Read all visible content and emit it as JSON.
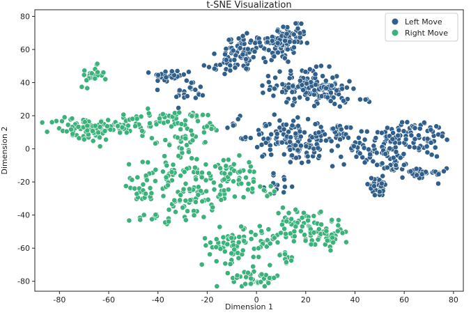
{
  "chart_data": {
    "type": "scatter",
    "title": "t-SNE Visualization",
    "xlabel": "Dimension 1",
    "ylabel": "Dimension 2",
    "xlim": [
      -90,
      84
    ],
    "ylim": [
      -86,
      84
    ],
    "xticks": [
      -80,
      -60,
      -40,
      -20,
      0,
      20,
      40,
      60,
      80
    ],
    "yticks": [
      -80,
      -60,
      -40,
      -20,
      0,
      20,
      40,
      60,
      80
    ],
    "grid": false,
    "legend_position": "top-right",
    "series": [
      {
        "name": "Left Move",
        "color": "#2f5f8a",
        "edge_color": "#ffffff",
        "clusters": [
          {
            "cx": -5,
            "cy": 58,
            "sx": 4,
            "sy": 6,
            "n": 55
          },
          {
            "cx": -14,
            "cy": 52,
            "sx": 4,
            "sy": 4,
            "n": 20
          },
          {
            "cx": 9,
            "cy": 63,
            "sx": 5,
            "sy": 6,
            "n": 70
          },
          {
            "cx": 15,
            "cy": 70,
            "sx": 3,
            "sy": 4,
            "n": 25
          },
          {
            "cx": -34,
            "cy": 44,
            "sx": 4,
            "sy": 2,
            "n": 30
          },
          {
            "cx": -27,
            "cy": 34,
            "sx": 3,
            "sy": 4,
            "n": 20
          },
          {
            "cx": 20,
            "cy": 38,
            "sx": 7,
            "sy": 5,
            "n": 120
          },
          {
            "cx": 30,
            "cy": 33,
            "sx": 4,
            "sy": 4,
            "n": 30
          },
          {
            "cx": 43,
            "cy": 29,
            "sx": 1.5,
            "sy": 0.7,
            "n": 5
          },
          {
            "cx": -8,
            "cy": 15,
            "sx": 2,
            "sy": 3,
            "n": 8
          },
          {
            "cx": 8,
            "cy": 8,
            "sx": 6,
            "sy": 5,
            "n": 60
          },
          {
            "cx": 20,
            "cy": 0,
            "sx": 6,
            "sy": 5,
            "n": 60
          },
          {
            "cx": 33,
            "cy": 10,
            "sx": 5,
            "sy": 3,
            "n": 40
          },
          {
            "cx": 48,
            "cy": 0,
            "sx": 6,
            "sy": 5,
            "n": 60
          },
          {
            "cx": 61,
            "cy": 10,
            "sx": 5,
            "sy": 4,
            "n": 40
          },
          {
            "cx": 70,
            "cy": 5,
            "sx": 3,
            "sy": 5,
            "n": 30
          },
          {
            "cx": 67,
            "cy": -15,
            "sx": 5,
            "sy": 2,
            "n": 30
          },
          {
            "cx": 49,
            "cy": -23,
            "sx": 3,
            "sy": 3,
            "n": 30
          },
          {
            "cx": 55,
            "cy": -10,
            "sx": 4,
            "sy": 4,
            "n": 25
          },
          {
            "cx": 10,
            "cy": -22,
            "sx": 3,
            "sy": 3,
            "n": 14
          }
        ]
      },
      {
        "name": "Right Move",
        "color": "#3bb27a",
        "edge_color": "#ffffff",
        "clusters": [
          {
            "cx": -67,
            "cy": 44,
            "sx": 2.5,
            "sy": 3,
            "n": 22
          },
          {
            "cx": -70,
            "cy": 12,
            "sx": 7,
            "sy": 4,
            "n": 70
          },
          {
            "cx": -54,
            "cy": 14,
            "sx": 6,
            "sy": 3,
            "n": 45
          },
          {
            "cx": -38,
            "cy": 18,
            "sx": 7,
            "sy": 2,
            "n": 25
          },
          {
            "cx": -25,
            "cy": 21,
            "sx": 5,
            "sy": 1,
            "n": 12
          },
          {
            "cx": -30,
            "cy": 5,
            "sx": 4,
            "sy": 6,
            "n": 40
          },
          {
            "cx": -40,
            "cy": -15,
            "sx": 5,
            "sy": 5,
            "n": 25
          },
          {
            "cx": -47,
            "cy": -27,
            "sx": 3,
            "sy": 4,
            "n": 18
          },
          {
            "cx": -28,
            "cy": -25,
            "sx": 6,
            "sy": 10,
            "n": 60
          },
          {
            "cx": -41,
            "cy": -43,
            "sx": 4,
            "sy": 2,
            "n": 14
          },
          {
            "cx": -15,
            "cy": -20,
            "sx": 5,
            "sy": 8,
            "n": 40
          },
          {
            "cx": -5,
            "cy": -15,
            "sx": 4,
            "sy": 7,
            "n": 30
          },
          {
            "cx": -12,
            "cy": -58,
            "sx": 5,
            "sy": 5,
            "n": 50
          },
          {
            "cx": 2,
            "cy": -55,
            "sx": 4,
            "sy": 5,
            "n": 30
          },
          {
            "cx": 0,
            "cy": -78,
            "sx": 5,
            "sy": 3,
            "n": 40
          },
          {
            "cx": 16,
            "cy": -44,
            "sx": 5,
            "sy": 4,
            "n": 35
          },
          {
            "cx": 25,
            "cy": -50,
            "sx": 5,
            "sy": 5,
            "n": 40
          },
          {
            "cx": 30,
            "cy": -53,
            "sx": 3,
            "sy": 4,
            "n": 20
          },
          {
            "cx": 12,
            "cy": -65,
            "sx": 2,
            "sy": 2,
            "n": 10
          },
          {
            "cx": 5,
            "cy": -25,
            "sx": 1.5,
            "sy": 1.5,
            "n": 6
          },
          {
            "cx": -20,
            "cy": 12,
            "sx": 3,
            "sy": 3,
            "n": 12
          }
        ]
      }
    ]
  }
}
